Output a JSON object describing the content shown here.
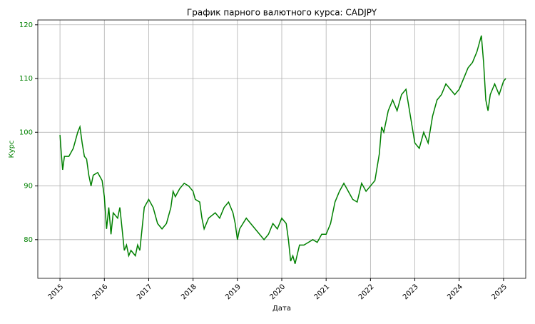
{
  "chart_data": {
    "type": "line",
    "title": "График парного валютного курса: CADJPY",
    "xlabel": "Дата",
    "ylabel": "Курс",
    "xlim": [
      2014.5,
      2025.5
    ],
    "xticks": [
      2015,
      2016,
      2017,
      2018,
      2019,
      2020,
      2021,
      2022,
      2023,
      2024,
      2025
    ],
    "ylim": [
      72.8,
      120.9
    ],
    "yticks": [
      80,
      90,
      100,
      110,
      120
    ],
    "grid": true,
    "axis_color": "#008000",
    "series": [
      {
        "name": "CADJPY",
        "color": "#008000",
        "x": [
          2015.0,
          2015.03,
          2015.06,
          2015.1,
          2015.2,
          2015.3,
          2015.4,
          2015.45,
          2015.5,
          2015.55,
          2015.6,
          2015.65,
          2015.7,
          2015.75,
          2015.85,
          2015.95,
          2016.0,
          2016.05,
          2016.1,
          2016.15,
          2016.2,
          2016.3,
          2016.35,
          2016.4,
          2016.45,
          2016.5,
          2016.55,
          2016.6,
          2016.7,
          2016.75,
          2016.8,
          2016.85,
          2016.9,
          2017.0,
          2017.1,
          2017.2,
          2017.3,
          2017.4,
          2017.5,
          2017.55,
          2017.6,
          2017.7,
          2017.8,
          2017.9,
          2018.0,
          2018.05,
          2018.15,
          2018.2,
          2018.25,
          2018.35,
          2018.5,
          2018.6,
          2018.7,
          2018.8,
          2018.9,
          2018.95,
          2019.0,
          2019.05,
          2019.2,
          2019.3,
          2019.4,
          2019.5,
          2019.6,
          2019.7,
          2019.8,
          2019.9,
          2020.0,
          2020.1,
          2020.15,
          2020.2,
          2020.25,
          2020.3,
          2020.4,
          2020.5,
          2020.6,
          2020.7,
          2020.8,
          2020.9,
          2021.0,
          2021.1,
          2021.2,
          2021.3,
          2021.4,
          2021.5,
          2021.6,
          2021.7,
          2021.8,
          2021.9,
          2022.0,
          2022.1,
          2022.2,
          2022.25,
          2022.3,
          2022.4,
          2022.5,
          2022.6,
          2022.7,
          2022.8,
          2022.9,
          2023.0,
          2023.1,
          2023.2,
          2023.3,
          2023.4,
          2023.5,
          2023.6,
          2023.7,
          2023.8,
          2023.9,
          2024.0,
          2024.1,
          2024.2,
          2024.3,
          2024.4,
          2024.5,
          2024.55,
          2024.6,
          2024.65,
          2024.7,
          2024.8,
          2024.9,
          2025.0,
          2025.05
        ],
        "values": [
          99.5,
          96,
          93,
          95.5,
          95.5,
          97,
          100,
          101,
          98,
          95.5,
          95,
          92,
          90,
          92,
          92.5,
          91,
          88,
          82,
          86,
          81,
          85,
          84,
          86,
          82,
          78,
          79,
          77,
          78,
          77,
          79,
          78,
          82,
          86,
          87.5,
          86,
          83,
          82,
          83,
          86,
          89,
          88,
          89.5,
          90.5,
          90,
          89,
          87.5,
          87,
          84,
          82,
          84,
          85,
          84,
          86,
          87,
          85,
          83,
          80,
          82,
          84,
          83,
          82,
          81,
          80,
          81,
          83,
          82,
          84,
          83,
          80,
          76,
          77,
          75.5,
          79,
          79,
          79.5,
          80,
          79.5,
          81,
          81,
          83,
          87,
          89,
          90.5,
          89,
          87.5,
          87,
          90.5,
          89,
          90,
          91,
          96,
          101,
          100,
          104,
          106,
          104,
          107,
          108,
          103,
          98,
          97,
          100,
          98,
          103,
          106,
          107,
          109,
          108,
          107,
          108,
          110,
          112,
          113,
          115,
          118,
          113,
          106,
          104,
          107,
          109,
          107,
          109.5,
          110
        ]
      }
    ]
  }
}
